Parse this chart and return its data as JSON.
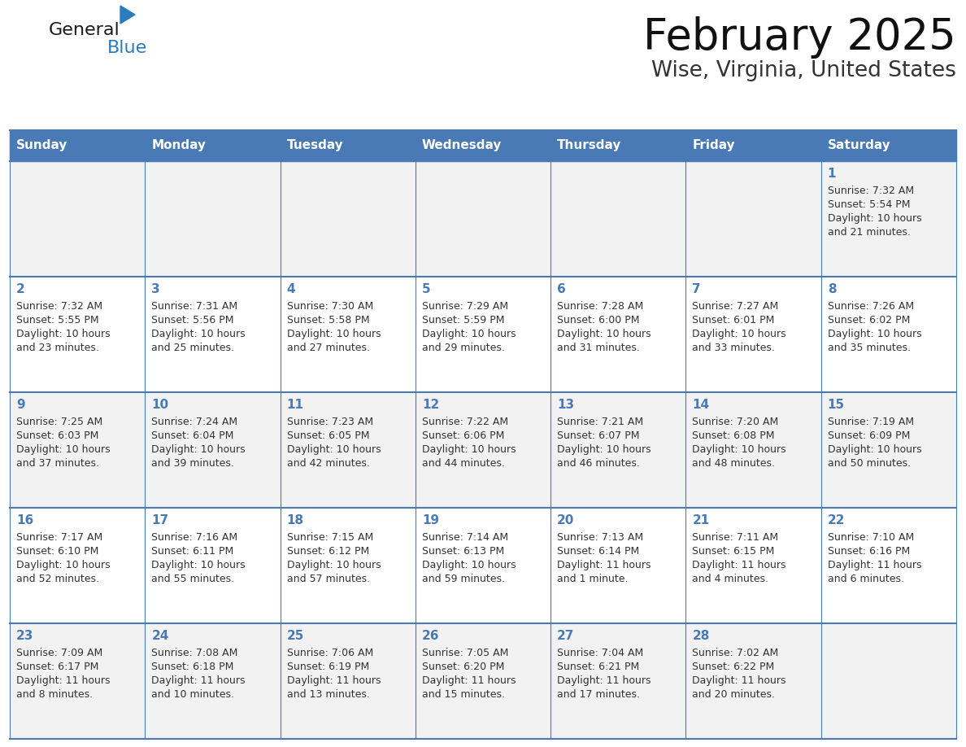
{
  "title": "February 2025",
  "subtitle": "Wise, Virginia, United States",
  "header_color": "#4a7ab5",
  "header_text_color": "#ffffff",
  "day_names": [
    "Sunday",
    "Monday",
    "Tuesday",
    "Wednesday",
    "Thursday",
    "Friday",
    "Saturday"
  ],
  "row_colors": [
    "#f2f2f2",
    "#ffffff"
  ],
  "border_color": "#4a7ab5",
  "text_color": "#333333",
  "number_color": "#4a7ab5",
  "days": [
    {
      "day": 1,
      "col": 6,
      "row": 0,
      "sunrise": "7:32 AM",
      "sunset": "5:54 PM",
      "daylight": "10 hours and 21 minutes."
    },
    {
      "day": 2,
      "col": 0,
      "row": 1,
      "sunrise": "7:32 AM",
      "sunset": "5:55 PM",
      "daylight": "10 hours and 23 minutes."
    },
    {
      "day": 3,
      "col": 1,
      "row": 1,
      "sunrise": "7:31 AM",
      "sunset": "5:56 PM",
      "daylight": "10 hours and 25 minutes."
    },
    {
      "day": 4,
      "col": 2,
      "row": 1,
      "sunrise": "7:30 AM",
      "sunset": "5:58 PM",
      "daylight": "10 hours and 27 minutes."
    },
    {
      "day": 5,
      "col": 3,
      "row": 1,
      "sunrise": "7:29 AM",
      "sunset": "5:59 PM",
      "daylight": "10 hours and 29 minutes."
    },
    {
      "day": 6,
      "col": 4,
      "row": 1,
      "sunrise": "7:28 AM",
      "sunset": "6:00 PM",
      "daylight": "10 hours and 31 minutes."
    },
    {
      "day": 7,
      "col": 5,
      "row": 1,
      "sunrise": "7:27 AM",
      "sunset": "6:01 PM",
      "daylight": "10 hours and 33 minutes."
    },
    {
      "day": 8,
      "col": 6,
      "row": 1,
      "sunrise": "7:26 AM",
      "sunset": "6:02 PM",
      "daylight": "10 hours and 35 minutes."
    },
    {
      "day": 9,
      "col": 0,
      "row": 2,
      "sunrise": "7:25 AM",
      "sunset": "6:03 PM",
      "daylight": "10 hours and 37 minutes."
    },
    {
      "day": 10,
      "col": 1,
      "row": 2,
      "sunrise": "7:24 AM",
      "sunset": "6:04 PM",
      "daylight": "10 hours and 39 minutes."
    },
    {
      "day": 11,
      "col": 2,
      "row": 2,
      "sunrise": "7:23 AM",
      "sunset": "6:05 PM",
      "daylight": "10 hours and 42 minutes."
    },
    {
      "day": 12,
      "col": 3,
      "row": 2,
      "sunrise": "7:22 AM",
      "sunset": "6:06 PM",
      "daylight": "10 hours and 44 minutes."
    },
    {
      "day": 13,
      "col": 4,
      "row": 2,
      "sunrise": "7:21 AM",
      "sunset": "6:07 PM",
      "daylight": "10 hours and 46 minutes."
    },
    {
      "day": 14,
      "col": 5,
      "row": 2,
      "sunrise": "7:20 AM",
      "sunset": "6:08 PM",
      "daylight": "10 hours and 48 minutes."
    },
    {
      "day": 15,
      "col": 6,
      "row": 2,
      "sunrise": "7:19 AM",
      "sunset": "6:09 PM",
      "daylight": "10 hours and 50 minutes."
    },
    {
      "day": 16,
      "col": 0,
      "row": 3,
      "sunrise": "7:17 AM",
      "sunset": "6:10 PM",
      "daylight": "10 hours and 52 minutes."
    },
    {
      "day": 17,
      "col": 1,
      "row": 3,
      "sunrise": "7:16 AM",
      "sunset": "6:11 PM",
      "daylight": "10 hours and 55 minutes."
    },
    {
      "day": 18,
      "col": 2,
      "row": 3,
      "sunrise": "7:15 AM",
      "sunset": "6:12 PM",
      "daylight": "10 hours and 57 minutes."
    },
    {
      "day": 19,
      "col": 3,
      "row": 3,
      "sunrise": "7:14 AM",
      "sunset": "6:13 PM",
      "daylight": "10 hours and 59 minutes."
    },
    {
      "day": 20,
      "col": 4,
      "row": 3,
      "sunrise": "7:13 AM",
      "sunset": "6:14 PM",
      "daylight": "11 hours and 1 minute."
    },
    {
      "day": 21,
      "col": 5,
      "row": 3,
      "sunrise": "7:11 AM",
      "sunset": "6:15 PM",
      "daylight": "11 hours and 4 minutes."
    },
    {
      "day": 22,
      "col": 6,
      "row": 3,
      "sunrise": "7:10 AM",
      "sunset": "6:16 PM",
      "daylight": "11 hours and 6 minutes."
    },
    {
      "day": 23,
      "col": 0,
      "row": 4,
      "sunrise": "7:09 AM",
      "sunset": "6:17 PM",
      "daylight": "11 hours and 8 minutes."
    },
    {
      "day": 24,
      "col": 1,
      "row": 4,
      "sunrise": "7:08 AM",
      "sunset": "6:18 PM",
      "daylight": "11 hours and 10 minutes."
    },
    {
      "day": 25,
      "col": 2,
      "row": 4,
      "sunrise": "7:06 AM",
      "sunset": "6:19 PM",
      "daylight": "11 hours and 13 minutes."
    },
    {
      "day": 26,
      "col": 3,
      "row": 4,
      "sunrise": "7:05 AM",
      "sunset": "6:20 PM",
      "daylight": "11 hours and 15 minutes."
    },
    {
      "day": 27,
      "col": 4,
      "row": 4,
      "sunrise": "7:04 AM",
      "sunset": "6:21 PM",
      "daylight": "11 hours and 17 minutes."
    },
    {
      "day": 28,
      "col": 5,
      "row": 4,
      "sunrise": "7:02 AM",
      "sunset": "6:22 PM",
      "daylight": "11 hours and 20 minutes."
    }
  ],
  "logo_text_general": "General",
  "logo_text_blue": "Blue",
  "logo_color_general": "#1a1a1a",
  "logo_color_blue": "#2b7bbf",
  "logo_triangle_color": "#2b7bbf",
  "figwidth": 11.88,
  "figheight": 9.18,
  "dpi": 100
}
